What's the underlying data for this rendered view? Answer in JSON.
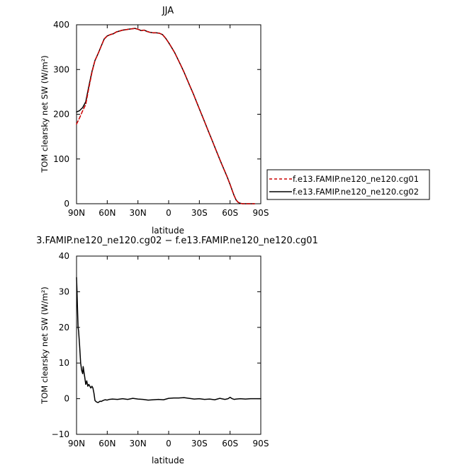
{
  "chart_data": [
    {
      "type": "line",
      "title": "JJA",
      "xlabel": "latitude",
      "ylabel": "TOM clearsky net SW (W/m²)",
      "xlim": [
        90,
        -90
      ],
      "ylim": [
        0,
        400
      ],
      "xticks": [
        90,
        60,
        30,
        0,
        -30,
        -60,
        -90
      ],
      "xtick_labels": [
        "90N",
        "60N",
        "30N",
        "0",
        "30S",
        "60S",
        "90S"
      ],
      "yticks": [
        0,
        100,
        200,
        300,
        400
      ],
      "ytick_labels": [
        "0",
        "100",
        "200",
        "300",
        "400"
      ],
      "legend_position": "right",
      "series": [
        {
          "name": "f.e13.FAMIP.ne120_ne120.cg02",
          "color": "#000000",
          "dash": "solid",
          "x": [
            90,
            87,
            84,
            81,
            78,
            75,
            72,
            69,
            66,
            63,
            60,
            57,
            54,
            51,
            48,
            45,
            42,
            39,
            36,
            33,
            30,
            27,
            24,
            21,
            18,
            15,
            12,
            9,
            6,
            3,
            0,
            -3,
            -6,
            -9,
            -12,
            -15,
            -18,
            -21,
            -24,
            -27,
            -30,
            -33,
            -36,
            -39,
            -42,
            -45,
            -48,
            -51,
            -54,
            -57,
            -60,
            -62,
            -64,
            -66,
            -68,
            -70,
            -72,
            -75,
            -78,
            -81,
            -84
          ],
          "y": [
            205,
            208,
            215,
            228,
            262,
            295,
            320,
            335,
            352,
            368,
            375,
            378,
            380,
            384,
            386,
            388,
            389,
            390,
            391,
            392,
            390,
            387,
            388,
            385,
            383,
            382,
            382,
            381,
            378,
            370,
            360,
            349,
            337,
            323,
            309,
            294,
            278,
            262,
            246,
            229,
            212,
            195,
            178,
            161,
            144,
            127,
            110,
            93,
            77,
            61,
            43,
            30,
            18,
            8,
            3,
            1,
            0,
            0,
            0,
            0,
            0
          ]
        },
        {
          "name": "f.e13.FAMIP.ne120_ne120.cg01",
          "color": "#cc0000",
          "dash": "dashed",
          "x": [
            90,
            87,
            84,
            81,
            78,
            75,
            72,
            69,
            66,
            63,
            60,
            57,
            54,
            51,
            48,
            45,
            42,
            39,
            36,
            33,
            30,
            27,
            24,
            21,
            18,
            15,
            12,
            9,
            6,
            3,
            0,
            -3,
            -6,
            -9,
            -12,
            -15,
            -18,
            -21,
            -24,
            -27,
            -30,
            -33,
            -36,
            -39,
            -42,
            -45,
            -48,
            -51,
            -54,
            -57,
            -60,
            -62,
            -64,
            -66,
            -68,
            -70,
            -72,
            -75,
            -78,
            -81,
            -84
          ],
          "y": [
            178,
            192,
            208,
            222,
            258,
            293,
            320,
            335,
            352,
            368,
            375,
            378,
            380,
            384,
            386,
            388,
            389,
            390,
            391,
            392,
            390,
            387,
            388,
            385,
            383,
            382,
            382,
            381,
            378,
            370,
            360,
            349,
            337,
            323,
            309,
            294,
            278,
            262,
            246,
            229,
            212,
            195,
            178,
            161,
            144,
            127,
            110,
            93,
            77,
            61,
            43,
            30,
            18,
            8,
            3,
            1,
            0,
            0,
            0,
            0,
            0
          ]
        }
      ]
    },
    {
      "type": "line",
      "title": "3.FAMIP.ne120_ne120.cg02 − f.e13.FAMIP.ne120_ne120.cg01",
      "xlabel": "latitude",
      "ylabel": "TOM clearsky net SW (W/m²)",
      "xlim": [
        90,
        -90
      ],
      "ylim": [
        -10,
        40
      ],
      "xticks": [
        90,
        60,
        30,
        0,
        -30,
        -60,
        -90
      ],
      "xtick_labels": [
        "90N",
        "60N",
        "30N",
        "0",
        "30S",
        "60S",
        "90S"
      ],
      "yticks": [
        -10,
        0,
        10,
        20,
        30,
        40
      ],
      "ytick_labels": [
        "−10",
        "0",
        "10",
        "20",
        "30",
        "40"
      ],
      "series": [
        {
          "color": "#000000",
          "dash": "solid",
          "x": [
            90,
            89.5,
            89,
            88.5,
            88,
            87,
            86,
            85,
            84,
            83.5,
            83,
            82,
            81,
            80,
            79,
            78,
            77,
            76,
            75,
            74,
            73,
            72,
            71,
            70,
            69,
            68,
            67,
            66,
            64,
            62,
            60,
            58,
            55,
            50,
            45,
            40,
            35,
            30,
            25,
            20,
            15,
            10,
            5,
            0,
            -5,
            -10,
            -15,
            -20,
            -25,
            -30,
            -35,
            -40,
            -45,
            -50,
            -55,
            -58,
            -60,
            -62,
            -64,
            -66,
            -70,
            -75,
            -80,
            -85,
            -90
          ],
          "y": [
            34,
            30,
            25,
            20,
            19,
            15,
            10,
            8,
            7,
            9,
            8,
            6,
            4,
            5,
            3.5,
            4,
            3.5,
            3,
            3.5,
            3,
            1.5,
            -0.5,
            -0.8,
            -1,
            -1.1,
            -0.9,
            -0.7,
            -0.8,
            -0.5,
            -0.3,
            -0.4,
            -0.2,
            -0.1,
            -0.2,
            0,
            -0.2,
            0.1,
            -0.1,
            -0.2,
            -0.4,
            -0.3,
            -0.2,
            -0.3,
            0.1,
            0.2,
            0.2,
            0.3,
            0.1,
            -0.1,
            0,
            -0.2,
            -0.1,
            -0.3,
            0.1,
            -0.2,
            0,
            0.4,
            0,
            -0.2,
            -0.1,
            0,
            -0.1,
            0,
            0,
            0
          ]
        }
      ]
    }
  ]
}
